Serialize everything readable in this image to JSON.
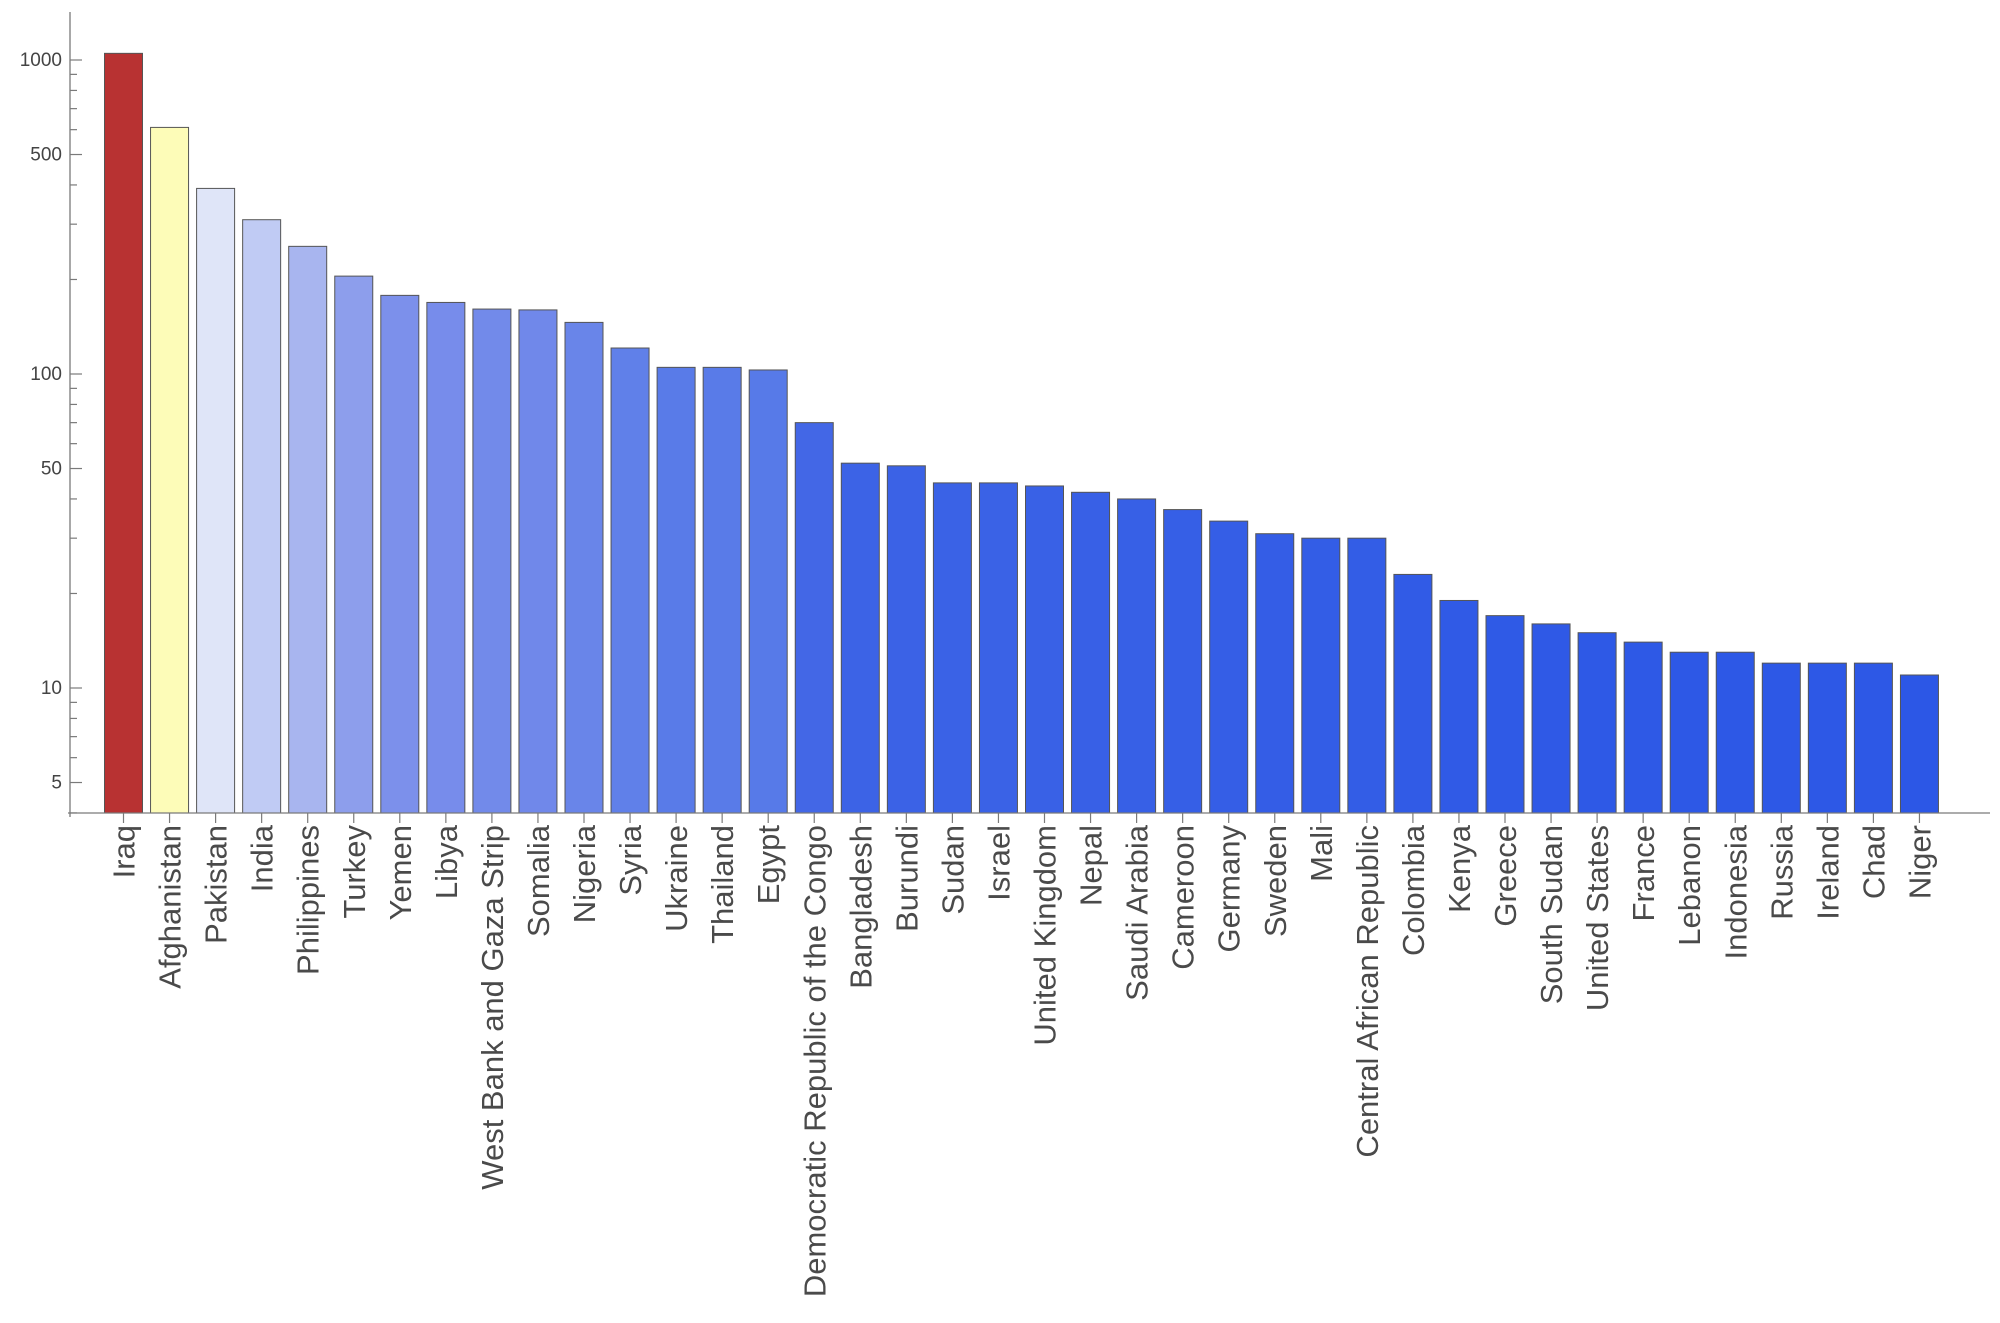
{
  "chart_data": {
    "type": "bar",
    "title": "",
    "xlabel": "",
    "ylabel": "",
    "y_scale": "log",
    "ylim": [
      4,
      1100
    ],
    "yticks": [
      5,
      10,
      50,
      100,
      500,
      1000
    ],
    "grid": false,
    "legend": "none",
    "categories": [
      "Iraq",
      "Afghanistan",
      "Pakistan",
      "India",
      "Philippines",
      "Turkey",
      "Yemen",
      "Libya",
      "West Bank and Gaza Strip",
      "Somalia",
      "Nigeria",
      "Syria",
      "Ukraine",
      "Thailand",
      "Egypt",
      "Democratic Republic of the Congo",
      "Bangladesh",
      "Burundi",
      "Sudan",
      "Israel",
      "United Kingdom",
      "Nepal",
      "Saudi Arabia",
      "Cameroon",
      "Germany",
      "Sweden",
      "Mali",
      "Central African Republic",
      "Colombia",
      "Kenya",
      "Greece",
      "South Sudan",
      "United States",
      "France",
      "Lebanon",
      "Indonesia",
      "Russia",
      "Ireland",
      "Chad",
      "Niger"
    ],
    "values": [
      1050,
      610,
      390,
      310,
      255,
      205,
      178,
      169,
      161,
      160,
      146,
      121,
      105,
      105,
      103,
      70,
      52,
      51,
      45,
      45,
      44,
      42,
      40,
      37,
      34,
      31,
      30,
      30,
      23,
      19,
      17,
      16,
      15,
      14,
      13,
      13,
      12,
      12,
      12,
      11
    ],
    "bar_colors": [
      "#b83232",
      "#fdfcb8",
      "#dfe5f8",
      "#c0cbf4",
      "#a8b5ef",
      "#8d9eec",
      "#7c90eb",
      "#778ceb",
      "#728aea",
      "#7088ea",
      "#6985e9",
      "#6080e9",
      "#597be8",
      "#597be8",
      "#577ae8",
      "#4367e6",
      "#3c63e6",
      "#3b62e6",
      "#3a62e6",
      "#3a62e6",
      "#3961e6",
      "#3860e6",
      "#3760e6",
      "#365fe6",
      "#355ee6",
      "#345de6",
      "#335de6",
      "#335de6",
      "#315be6",
      "#305ae6",
      "#2f5ae6",
      "#2f59e6",
      "#2e59e6",
      "#2e59e6",
      "#2d58e6",
      "#2d58e6",
      "#2d58e6",
      "#2d58e6",
      "#2d58e6",
      "#2c57e6"
    ]
  }
}
